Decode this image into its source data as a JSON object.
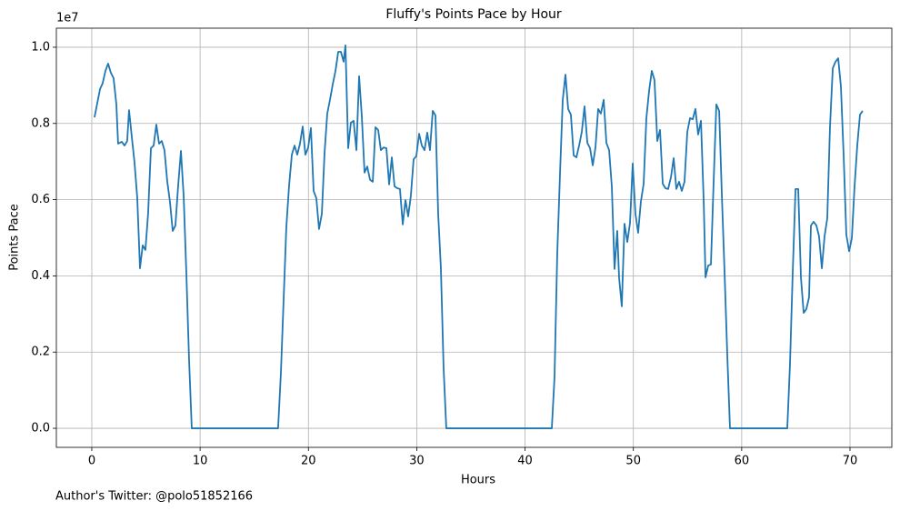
{
  "chart_data": {
    "type": "line",
    "title": "Fluffy's Points Pace by Hour",
    "x_label": "Hours",
    "y_label": "Points Pace",
    "y_offset_label": "1e7",
    "footnote": "Author's Twitter: @polo51852166",
    "grid": true,
    "xlim": [
      -3.27,
      73.86
    ],
    "ylim": [
      -0.05,
      1.05
    ],
    "xticks": [
      0,
      10,
      20,
      30,
      40,
      50,
      60,
      70
    ],
    "yticks": [
      {
        "value": 0,
        "label": "0.0"
      },
      0.2,
      0.4,
      0.6,
      0.8,
      {
        "value": 1,
        "label": "1.0"
      }
    ],
    "x": [
      0.25,
      0.76,
      1.0,
      1.26,
      1.51,
      1.76,
      2.01,
      2.27,
      2.43,
      2.77,
      3.02,
      3.27,
      3.44,
      3.69,
      3.94,
      4.2,
      4.45,
      4.7,
      4.95,
      5.2,
      5.46,
      5.71,
      5.96,
      6.21,
      6.46,
      6.71,
      6.97,
      7.22,
      7.47,
      7.72,
      7.97,
      8.23,
      8.48,
      8.73,
      8.98,
      9.23,
      17.2,
      17.46,
      17.71,
      17.96,
      18.21,
      18.47,
      18.72,
      18.97,
      19.22,
      19.47,
      19.72,
      19.98,
      20.23,
      20.48,
      20.73,
      20.98,
      21.24,
      21.49,
      21.74,
      21.99,
      22.24,
      22.5,
      22.75,
      23.0,
      23.25,
      23.42,
      23.67,
      23.92,
      24.17,
      24.43,
      24.68,
      24.93,
      25.18,
      25.43,
      25.69,
      25.94,
      26.19,
      26.44,
      26.69,
      26.95,
      27.2,
      27.45,
      27.7,
      27.95,
      28.2,
      28.45,
      28.71,
      28.96,
      29.21,
      29.46,
      29.71,
      29.96,
      30.22,
      30.47,
      30.72,
      30.97,
      31.22,
      31.48,
      31.73,
      31.98,
      32.23,
      32.48,
      32.73,
      42.47,
      42.72,
      42.97,
      43.23,
      43.48,
      43.73,
      43.98,
      44.23,
      44.49,
      44.74,
      44.99,
      45.24,
      45.49,
      45.75,
      46.0,
      46.25,
      46.5,
      46.75,
      47.0,
      47.26,
      47.51,
      47.76,
      48.01,
      48.26,
      48.51,
      48.68,
      48.93,
      49.18,
      49.44,
      49.69,
      49.94,
      50.19,
      50.44,
      50.69,
      50.95,
      51.2,
      51.45,
      51.7,
      51.95,
      52.21,
      52.46,
      52.71,
      52.96,
      53.21,
      53.47,
      53.72,
      53.97,
      54.22,
      54.47,
      54.72,
      54.98,
      55.23,
      55.48,
      55.73,
      55.98,
      56.24,
      56.49,
      56.66,
      56.91,
      57.16,
      57.41,
      57.66,
      57.92,
      58.17,
      58.42,
      58.67,
      58.92,
      64.21,
      64.46,
      64.71,
      64.97,
      65.22,
      65.47,
      65.72,
      65.97,
      66.22,
      66.39,
      66.64,
      66.9,
      67.14,
      67.4,
      67.65,
      67.9,
      68.15,
      68.41,
      68.66,
      68.91,
      69.16,
      69.41,
      69.66,
      69.92,
      70.17,
      70.42,
      70.67,
      70.92,
      71.17
    ],
    "series": [
      {
        "color": "#1f77b4",
        "values": [
          0.816,
          0.89,
          0.905,
          0.938,
          0.957,
          0.933,
          0.919,
          0.85,
          0.747,
          0.752,
          0.742,
          0.754,
          0.835,
          0.766,
          0.699,
          0.604,
          0.42,
          0.48,
          0.468,
          0.563,
          0.735,
          0.742,
          0.797,
          0.747,
          0.754,
          0.73,
          0.647,
          0.594,
          0.518,
          0.532,
          0.635,
          0.728,
          0.611,
          0.408,
          0.181,
          0,
          0,
          0.146,
          0.337,
          0.527,
          0.635,
          0.718,
          0.742,
          0.718,
          0.747,
          0.792,
          0.718,
          0.737,
          0.788,
          0.623,
          0.604,
          0.523,
          0.563,
          0.723,
          0.826,
          0.862,
          0.902,
          0.938,
          0.988,
          0.988,
          0.962,
          1.005,
          0.735,
          0.802,
          0.807,
          0.73,
          0.924,
          0.819,
          0.671,
          0.687,
          0.652,
          0.647,
          0.79,
          0.783,
          0.73,
          0.737,
          0.735,
          0.64,
          0.711,
          0.635,
          0.63,
          0.628,
          0.535,
          0.599,
          0.556,
          0.611,
          0.706,
          0.714,
          0.773,
          0.742,
          0.73,
          0.776,
          0.73,
          0.833,
          0.821,
          0.563,
          0.42,
          0.158,
          0,
          0,
          0.134,
          0.456,
          0.671,
          0.862,
          0.928,
          0.838,
          0.823,
          0.716,
          0.711,
          0.742,
          0.778,
          0.845,
          0.749,
          0.735,
          0.69,
          0.737,
          0.838,
          0.826,
          0.862,
          0.749,
          0.73,
          0.635,
          0.418,
          0.518,
          0.396,
          0.32,
          0.537,
          0.489,
          0.539,
          0.695,
          0.563,
          0.513,
          0.594,
          0.642,
          0.814,
          0.885,
          0.938,
          0.914,
          0.754,
          0.783,
          0.642,
          0.63,
          0.628,
          0.659,
          0.709,
          0.628,
          0.647,
          0.623,
          0.647,
          0.778,
          0.814,
          0.811,
          0.838,
          0.771,
          0.807,
          0.599,
          0.396,
          0.427,
          0.43,
          0.647,
          0.85,
          0.833,
          0.611,
          0.408,
          0.193,
          0,
          0,
          0.169,
          0.408,
          0.628,
          0.628,
          0.396,
          0.303,
          0.313,
          0.344,
          0.532,
          0.542,
          0.532,
          0.504,
          0.42,
          0.504,
          0.551,
          0.79,
          0.945,
          0.962,
          0.971,
          0.897,
          0.718,
          0.508,
          0.465,
          0.499,
          0.635,
          0.742,
          0.823,
          0.833
        ]
      }
    ]
  }
}
